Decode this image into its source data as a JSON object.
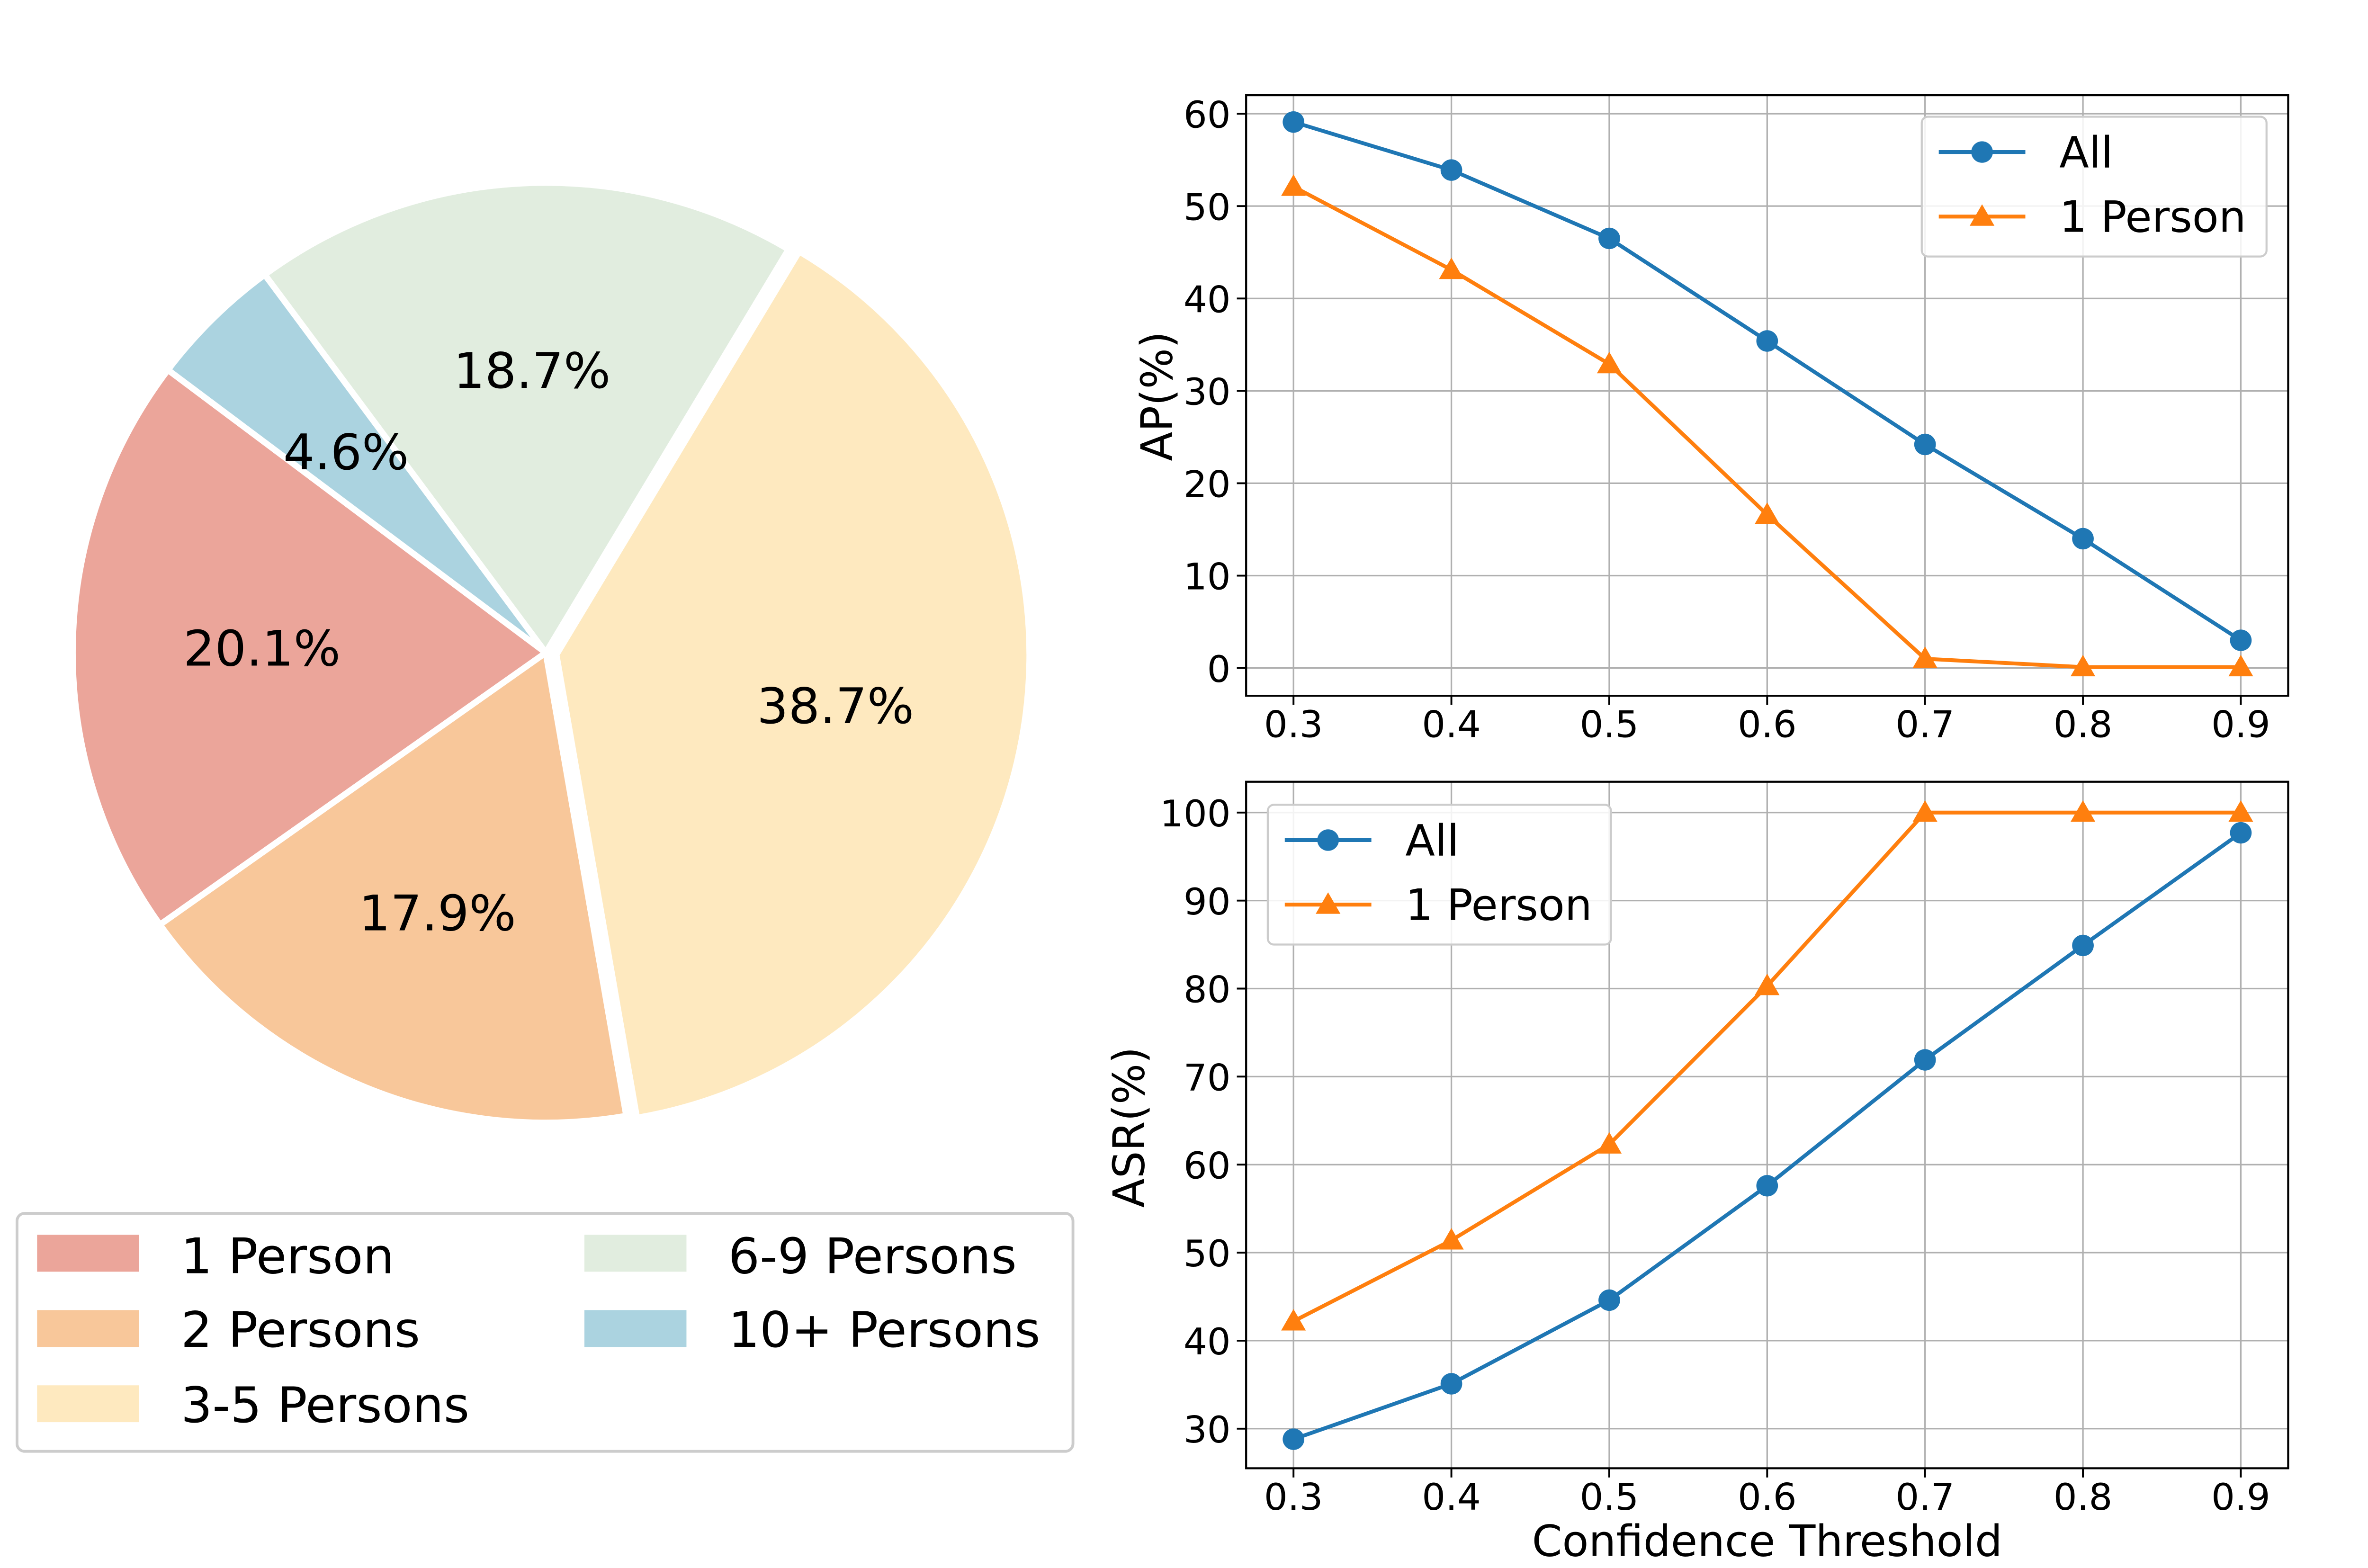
{
  "chart_data": [
    {
      "type": "pie",
      "slices": [
        {
          "label": "1 Person",
          "value": 20.1,
          "value_label": "20.1%",
          "color": "#EBA59A"
        },
        {
          "label": "2 Persons",
          "value": 17.9,
          "value_label": "17.9%",
          "color": "#F8C79A"
        },
        {
          "label": "3-5 Persons",
          "value": 38.7,
          "value_label": "38.7%",
          "color": "#FEE9BF"
        },
        {
          "label": "6-9 Persons",
          "value": 18.7,
          "value_label": "18.7%",
          "color": "#E1EDDF"
        },
        {
          "label": "10+ Persons",
          "value": 4.6,
          "value_label": "4.6%",
          "color": "#ABD3E0"
        }
      ],
      "start_angle_deg": 143,
      "direction": "counterclockwise",
      "edge_color": "#ffffff",
      "legend": {
        "location": "bottom",
        "columns": 2
      }
    },
    {
      "type": "line",
      "x": [
        0.3,
        0.4,
        0.5,
        0.6,
        0.7,
        0.8,
        0.9
      ],
      "x_ticks": [
        "0.3",
        "0.4",
        "0.5",
        "0.6",
        "0.7",
        "0.8",
        "0.9"
      ],
      "xlim": [
        0.27,
        0.93
      ],
      "ylabel": "AP(%)",
      "ylim": [
        -3,
        62
      ],
      "y_ticks": [
        "0",
        "10",
        "20",
        "30",
        "40",
        "50",
        "60"
      ],
      "grid": true,
      "legend": {
        "location": "top-right"
      },
      "series": [
        {
          "name": "All",
          "color": "#1F77B4",
          "marker": "circle",
          "values": [
            59.1,
            53.9,
            46.5,
            35.4,
            24.2,
            14.0,
            3.0
          ]
        },
        {
          "name": "1 Person",
          "color": "#FF7F0E",
          "marker": "triangle",
          "values": [
            52.1,
            43.1,
            32.9,
            16.6,
            1.0,
            0.1,
            0.1
          ]
        }
      ]
    },
    {
      "type": "line",
      "x": [
        0.3,
        0.4,
        0.5,
        0.6,
        0.7,
        0.8,
        0.9
      ],
      "x_ticks": [
        "0.3",
        "0.4",
        "0.5",
        "0.6",
        "0.7",
        "0.8",
        "0.9"
      ],
      "xlim": [
        0.27,
        0.93
      ],
      "xlabel": "Confidence Threshold",
      "ylabel": "ASR(%)",
      "ylim": [
        25.5,
        103.5
      ],
      "y_ticks": [
        "30",
        "40",
        "50",
        "60",
        "70",
        "80",
        "90",
        "100"
      ],
      "grid": true,
      "legend": {
        "location": "top-left"
      },
      "series": [
        {
          "name": "All",
          "color": "#1F77B4",
          "marker": "circle",
          "values": [
            28.8,
            35.1,
            44.6,
            57.6,
            71.9,
            84.9,
            97.7
          ]
        },
        {
          "name": "1 Person",
          "color": "#FF7F0E",
          "marker": "triangle",
          "values": [
            42.2,
            51.4,
            62.3,
            80.3,
            100.0,
            100.0,
            100.0
          ]
        }
      ]
    }
  ]
}
